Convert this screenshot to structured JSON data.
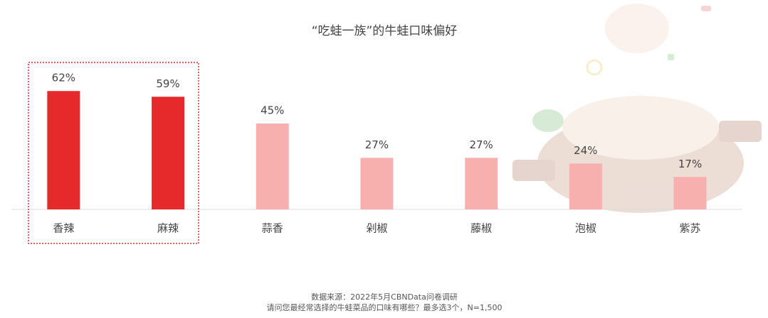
{
  "chart_data": {
    "type": "bar",
    "title": "“吃蛙一族”的牛蛙口味偏好",
    "categories": [
      "香辣",
      "麻辣",
      "蒜香",
      "剁椒",
      "藤椒",
      "泡椒",
      "紫苏"
    ],
    "values": [
      62,
      59,
      45,
      27,
      27,
      24,
      17
    ],
    "value_labels": [
      "62%",
      "59%",
      "45%",
      "27%",
      "27%",
      "24%",
      "17%"
    ],
    "colors": [
      "#e62a2c",
      "#e62a2c",
      "#f7b0ae",
      "#f7b0ae",
      "#f7b0ae",
      "#f7b0ae",
      "#f7b0ae"
    ],
    "source": "数据来源：2022年5月CBNData问卷调研",
    "question": "请问您最经常选择的牛蛙菜品的口味有哪些？最多选3个，N=1,500"
  }
}
